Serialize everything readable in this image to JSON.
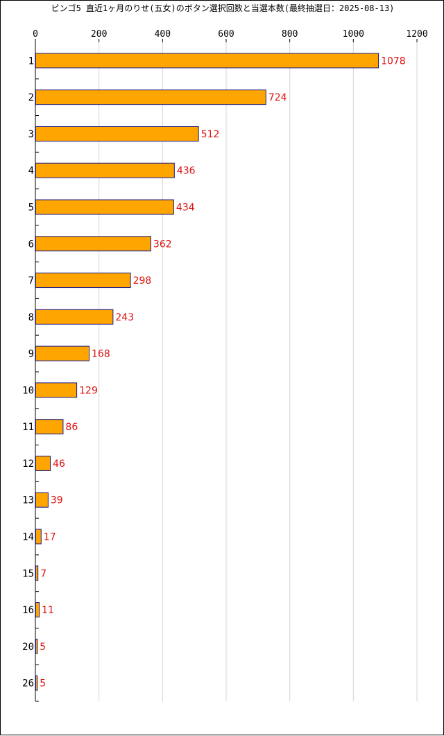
{
  "chart_data": {
    "type": "bar",
    "orientation": "horizontal",
    "title": "ビンゴ5 直近1ヶ月のりせ(五女)のボタン選択回数と当選本数(最終抽選日：2025-08-13)",
    "xlabel": "",
    "ylabel": "",
    "categories": [
      "1",
      "2",
      "3",
      "4",
      "5",
      "6",
      "7",
      "8",
      "9",
      "10",
      "11",
      "12",
      "13",
      "14",
      "15",
      "16",
      "20",
      "26"
    ],
    "values": [
      1078,
      724,
      512,
      436,
      434,
      362,
      298,
      243,
      168,
      129,
      86,
      46,
      39,
      17,
      7,
      11,
      5,
      5
    ],
    "xlim": [
      0,
      1200
    ],
    "xticks": [
      "0",
      "200",
      "400",
      "600",
      "800",
      "1000",
      "1200"
    ],
    "axis_position": "top",
    "grid": true,
    "legend": "none",
    "data_labels": true,
    "colors": {
      "bar_fill": "#ffa500",
      "bar_edge": "#1a1a8a",
      "value_label": "#dd1111",
      "grid": "#d4d4d4",
      "axis": "#000000"
    }
  }
}
